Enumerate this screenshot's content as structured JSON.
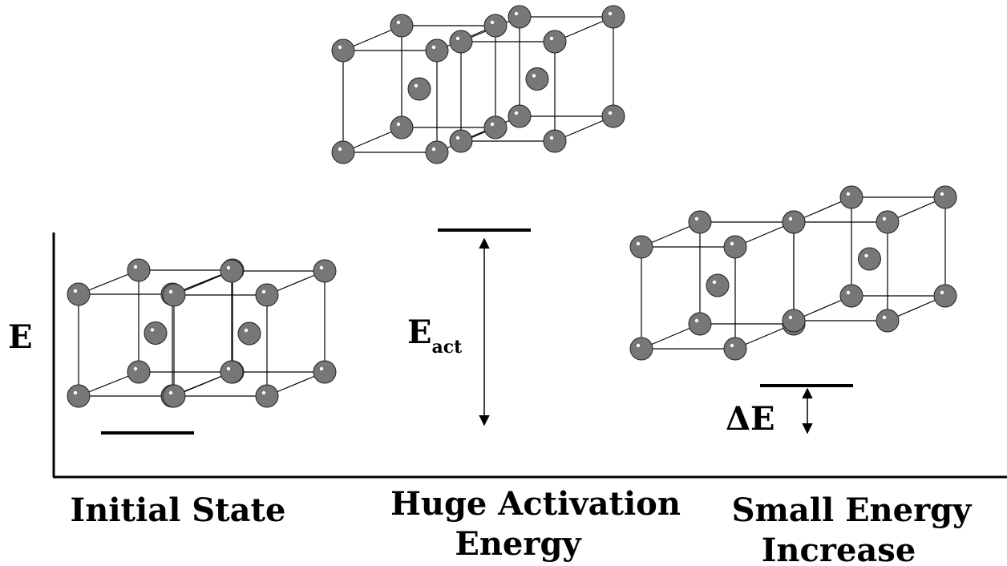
{
  "axis_label": "E",
  "activation_label": {
    "main": "E",
    "sub": "act"
  },
  "delta_label": "ΔE",
  "states": [
    {
      "label": [
        "Initial State"
      ]
    },
    {
      "label": [
        "Huge Activation",
        "Energy"
      ]
    },
    {
      "label": [
        "Small Energy",
        "Increase"
      ]
    }
  ]
}
